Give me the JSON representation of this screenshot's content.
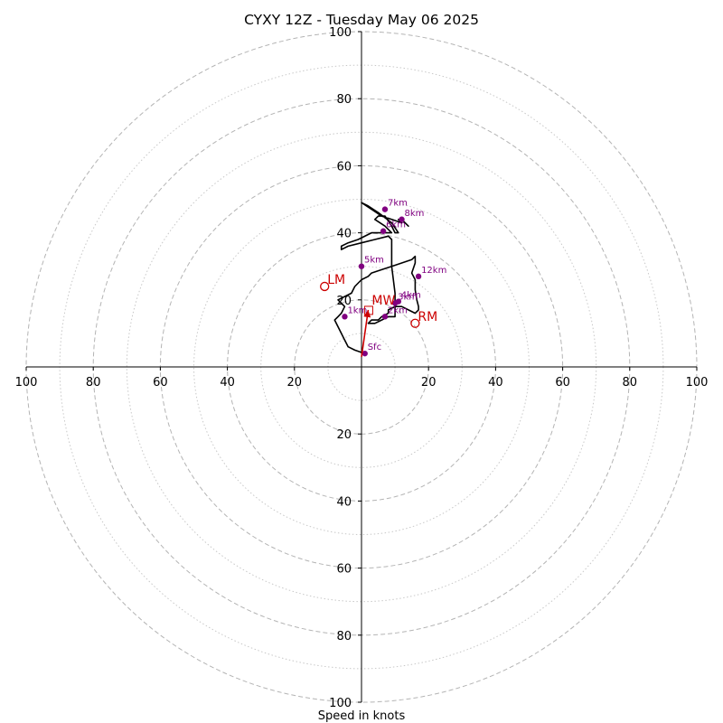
{
  "chart_data": {
    "type": "hodograph",
    "title": "CYXY 12Z - Tuesday May 06 2025",
    "xlabel": "Speed in knots",
    "range": [
      -100,
      100
    ],
    "major_rings": [
      20,
      40,
      60,
      80,
      100
    ],
    "minor_rings": [
      10,
      30,
      50,
      70,
      90
    ],
    "tick_labels": {
      "x_left": [
        "100",
        "80",
        "60",
        "40",
        "20"
      ],
      "x_right": [
        "20",
        "40",
        "60",
        "80",
        "100"
      ],
      "y_top": [
        "20",
        "40",
        "60",
        "80",
        "100"
      ],
      "y_bottom": [
        "20",
        "40",
        "60",
        "80",
        "100"
      ]
    },
    "tick_values": {
      "x_left": [
        -100,
        -80,
        -60,
        -40,
        -20
      ],
      "x_right": [
        20,
        40,
        60,
        80,
        100
      ],
      "y_top": [
        20,
        40,
        60,
        80,
        100
      ],
      "y_bottom": [
        -20,
        -40,
        -60,
        -80,
        -100
      ]
    },
    "trace_color": "#000000",
    "trace": [
      [
        1,
        4
      ],
      [
        -2,
        5
      ],
      [
        -4,
        6
      ],
      [
        -5,
        8
      ],
      [
        -6,
        10
      ],
      [
        -8,
        14
      ],
      [
        -7,
        15
      ],
      [
        -6,
        16
      ],
      [
        -5,
        18
      ],
      [
        -6,
        19
      ],
      [
        -7,
        20
      ],
      [
        -5,
        21
      ],
      [
        -3,
        22
      ],
      [
        -2,
        24
      ],
      [
        0,
        26
      ],
      [
        2,
        27
      ],
      [
        3,
        28
      ],
      [
        6,
        29
      ],
      [
        9,
        30
      ],
      [
        12,
        31
      ],
      [
        15,
        32
      ],
      [
        16,
        33
      ],
      [
        16,
        31
      ],
      [
        15,
        28
      ],
      [
        16,
        26
      ],
      [
        16,
        23
      ],
      [
        16.5,
        20
      ],
      [
        17,
        18
      ],
      [
        17,
        17
      ],
      [
        16,
        16
      ],
      [
        14,
        17
      ],
      [
        12,
        18
      ],
      [
        10,
        18
      ],
      [
        8,
        17
      ],
      [
        8,
        16
      ],
      [
        6,
        15
      ],
      [
        5,
        14
      ],
      [
        3,
        14
      ],
      [
        2,
        13
      ],
      [
        4,
        13
      ],
      [
        6,
        14
      ],
      [
        8,
        15
      ],
      [
        10,
        15
      ],
      [
        10,
        18
      ],
      [
        10,
        22
      ],
      [
        9,
        30
      ],
      [
        9,
        38
      ],
      [
        8,
        39
      ],
      [
        4,
        38
      ],
      [
        0,
        37
      ],
      [
        -4,
        36
      ],
      [
        -6,
        35
      ],
      [
        -6,
        36
      ],
      [
        -4,
        37
      ],
      [
        -1,
        38
      ],
      [
        3,
        40
      ],
      [
        7,
        40
      ],
      [
        9,
        40
      ],
      [
        7,
        42
      ],
      [
        4,
        44
      ],
      [
        5,
        45
      ],
      [
        7,
        45
      ],
      [
        9,
        42
      ],
      [
        10,
        40
      ],
      [
        11,
        40
      ],
      [
        9,
        43
      ],
      [
        5,
        46
      ],
      [
        2,
        48
      ],
      [
        0,
        49
      ],
      [
        3,
        47
      ],
      [
        6,
        45
      ],
      [
        9,
        44
      ],
      [
        12,
        43
      ],
      [
        11,
        44
      ],
      [
        12,
        44
      ],
      [
        14,
        42
      ],
      [
        12,
        44
      ]
    ],
    "height_labels": [
      {
        "label": "Sfc",
        "x": 1,
        "y": 4
      },
      {
        "label": "1km",
        "x": -5,
        "y": 15
      },
      {
        "label": "2km",
        "x": 7,
        "y": 15
      },
      {
        "label": "3km",
        "x": 10,
        "y": 19
      },
      {
        "label": "4km",
        "x": 11,
        "y": 19.5
      },
      {
        "label": "5km",
        "x": 0,
        "y": 30
      },
      {
        "label": "6km",
        "x": 6.5,
        "y": 40.5
      },
      {
        "label": "7km",
        "x": 7,
        "y": 47
      },
      {
        "label": "8km",
        "x": 12,
        "y": 44
      },
      {
        "label": "12km",
        "x": 17,
        "y": 27
      }
    ],
    "height_color": "#800080",
    "mean_wind": {
      "label": "MW",
      "u": 2,
      "v": 17
    },
    "motion_color": "#cc0000",
    "storm_motions": [
      {
        "label": "LM",
        "u": -11,
        "v": 24
      },
      {
        "label": "RM",
        "u": 16,
        "v": 13
      }
    ],
    "vector": {
      "from": [
        0,
        3
      ],
      "to": [
        2,
        17
      ]
    }
  }
}
